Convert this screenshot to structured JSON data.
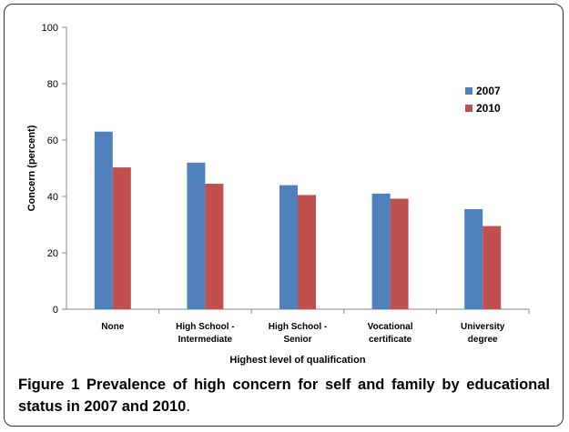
{
  "chart_data": {
    "type": "bar",
    "xlabel": "Highest level of qualification",
    "ylabel": "Concern (percent)",
    "ylim": [
      0,
      100
    ],
    "yticks": [
      0,
      20,
      40,
      60,
      80,
      100
    ],
    "categories": [
      [
        "None"
      ],
      [
        "High School -",
        "Intermediate"
      ],
      [
        "High School -",
        "Senior"
      ],
      [
        "Vocational",
        "certificate"
      ],
      [
        "University",
        "degree"
      ]
    ],
    "series": [
      {
        "name": "2007",
        "color": "#4F81BD",
        "values": [
          63,
          52,
          44,
          41,
          35.5
        ]
      },
      {
        "name": "2010",
        "color": "#C0504D",
        "values": [
          50.3,
          44.5,
          40.5,
          39.2,
          29.5
        ]
      }
    ],
    "grid": false,
    "legend_position": "right"
  },
  "caption": {
    "label": "Figure 1",
    "text": "Prevalence of high concern for self and family by educational status in 2007 and 2010",
    "end": "."
  }
}
